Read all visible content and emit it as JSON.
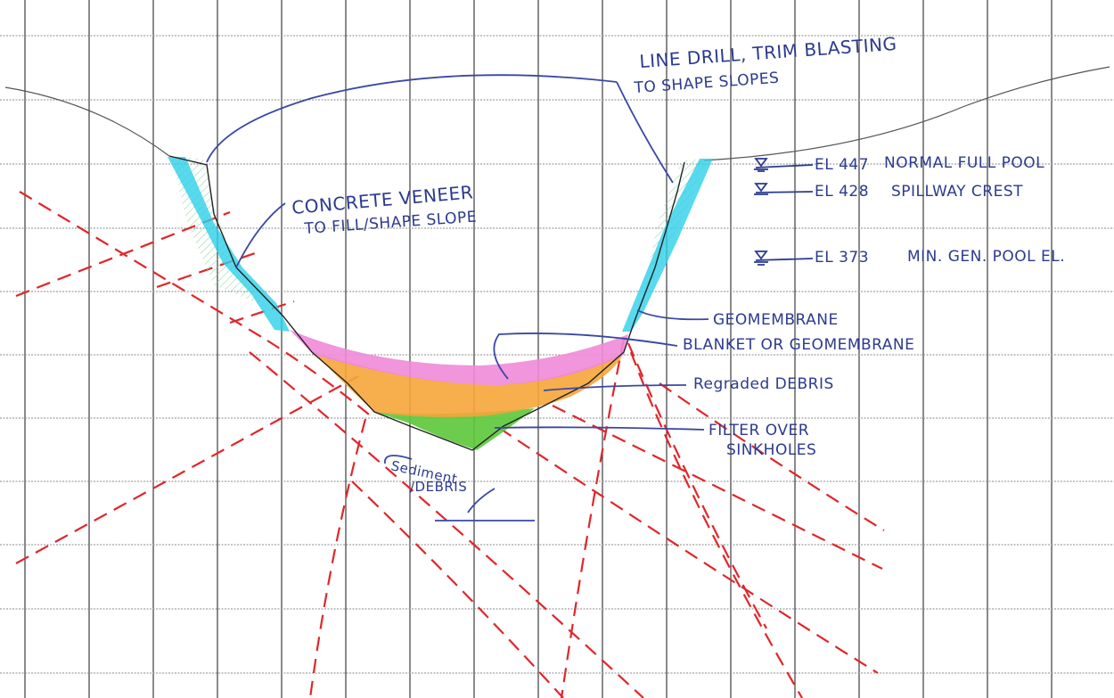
{
  "annotations": {
    "line_drill_1": "LINE DRILL, TRIM BLASTING",
    "line_drill_2": "TO SHAPE SLOPES",
    "concrete_veneer_1": "CONCRETE VENEER",
    "concrete_veneer_2": "TO FILL/SHAPE SLOPE",
    "geomembrane": "GEOMEMBRANE",
    "blanket": "BLANKET OR GEOMEMBRANE",
    "regraded_debris": "Regraded DEBRIS",
    "filter_1": "FILTER OVER",
    "filter_2": "SINKHOLES",
    "sediment_1": "Sediment",
    "sediment_2": "/DEBRIS"
  },
  "water_levels": [
    {
      "elevation": "EL 447",
      "label": "NORMAL FULL POOL"
    },
    {
      "elevation": "EL 428",
      "label": "SPILLWAY CREST"
    },
    {
      "elevation": "EL 373",
      "label": "MIN. GEN. POOL EL."
    }
  ],
  "colors": {
    "geomembrane": "#2fd0e8",
    "blanket": "#f08ad8",
    "regraded_debris": "#f6a53a",
    "filter": "#5cc83a",
    "fault_lines": "#e0262a",
    "ink": "#2c3a8f",
    "hatch": "#7fcf9a"
  }
}
